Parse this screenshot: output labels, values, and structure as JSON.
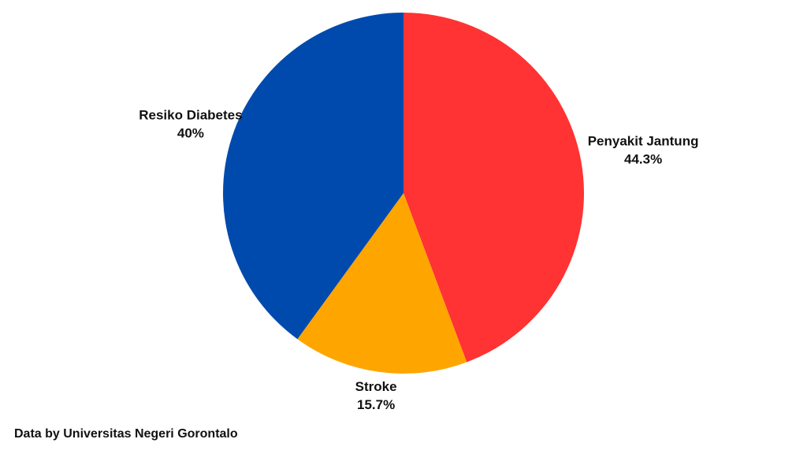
{
  "chart_data": {
    "type": "pie",
    "categories": [
      "Penyakit Jantung",
      "Stroke",
      "Resiko Diabetes"
    ],
    "values": [
      44.3,
      15.7,
      40
    ],
    "value_labels": [
      "44.3%",
      "15.7%",
      "40%"
    ],
    "colors": [
      "#ff3333",
      "#ffa500",
      "#004aad"
    ],
    "start": "12 o'clock",
    "direction": "clockwise",
    "legend": "none"
  },
  "footer": {
    "source": "Data by Universitas Negeri Gorontalo"
  }
}
